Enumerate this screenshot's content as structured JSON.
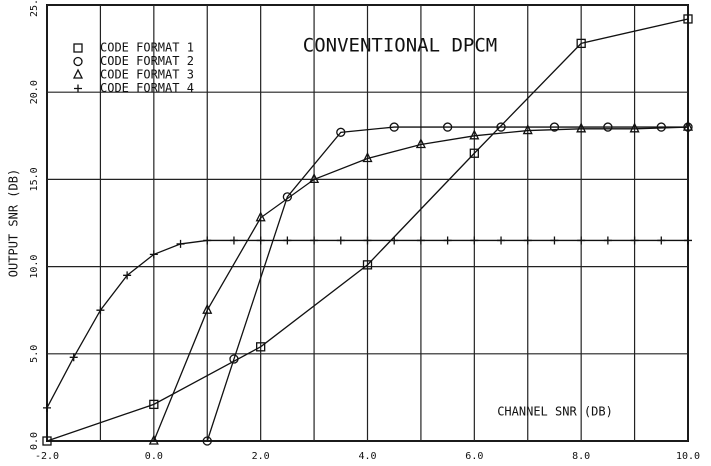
{
  "chart_data": {
    "type": "line",
    "title": "CONVENTIONAL DPCM",
    "x_label": "CHANNEL SNR (DB)",
    "y_label": "OUTPUT SNR (DB)",
    "xlim": [
      -2,
      10
    ],
    "ylim": [
      0,
      25
    ],
    "xticks": [
      {
        "value": -2,
        "label": "-2.0"
      },
      {
        "value": 0,
        "label": "0.0"
      },
      {
        "value": 2,
        "label": "2.0"
      },
      {
        "value": 4,
        "label": "4.0"
      },
      {
        "value": 6,
        "label": "6.0"
      },
      {
        "value": 8,
        "label": "8.0"
      },
      {
        "value": 10,
        "label": "10.0"
      }
    ],
    "xminor": [
      -1,
      1,
      3,
      5,
      7,
      9
    ],
    "yticks": [
      {
        "value": 0,
        "label": "0.0"
      },
      {
        "value": 5,
        "label": "5.0"
      },
      {
        "value": 10,
        "label": "10.0"
      },
      {
        "value": 15,
        "label": "15.0"
      },
      {
        "value": 20,
        "label": "20.0"
      },
      {
        "value": 25,
        "label": "25.0"
      }
    ],
    "grid": true,
    "series": [
      {
        "name": "CODE FORMAT 1",
        "marker": "square",
        "color": "#111111",
        "x": [
          -2,
          0,
          2,
          4,
          6,
          8,
          10
        ],
        "values": [
          0,
          2.1,
          5.4,
          10.1,
          16.5,
          22.8,
          24.2
        ]
      },
      {
        "name": "CODE FORMAT 2",
        "marker": "circle",
        "color": "#111111",
        "x": [
          1,
          1.5,
          2.5,
          3.5,
          4.5,
          5.5,
          6.5,
          7.5,
          8.5,
          9.5,
          10
        ],
        "values": [
          0,
          4.7,
          14,
          17.7,
          18,
          18,
          18,
          18,
          18,
          18,
          18
        ]
      },
      {
        "name": "CODE FORMAT 3",
        "marker": "triangle",
        "color": "#111111",
        "x": [
          0,
          1,
          2,
          3,
          4,
          5,
          6,
          7,
          8,
          9,
          10
        ],
        "values": [
          0,
          7.5,
          12.8,
          15,
          16.2,
          17,
          17.5,
          17.8,
          17.9,
          17.9,
          18
        ]
      },
      {
        "name": "CODE FORMAT 4",
        "marker": "plus",
        "color": "#111111",
        "x": [
          -2,
          -1.5,
          -1,
          -0.5,
          0,
          0.5,
          1,
          1.5,
          2,
          2.5,
          3,
          3.5,
          4,
          4.5,
          5,
          5.5,
          6,
          6.5,
          7,
          7.5,
          8,
          8.5,
          9,
          9.5,
          10
        ],
        "values": [
          1.9,
          4.8,
          7.5,
          9.5,
          10.7,
          11.3,
          11.5,
          11.5,
          11.5,
          11.5,
          11.5,
          11.5,
          11.5,
          11.5,
          11.5,
          11.5,
          11.5,
          11.5,
          11.5,
          11.5,
          11.5,
          11.5,
          11.5,
          11.5,
          11.5
        ]
      }
    ]
  }
}
